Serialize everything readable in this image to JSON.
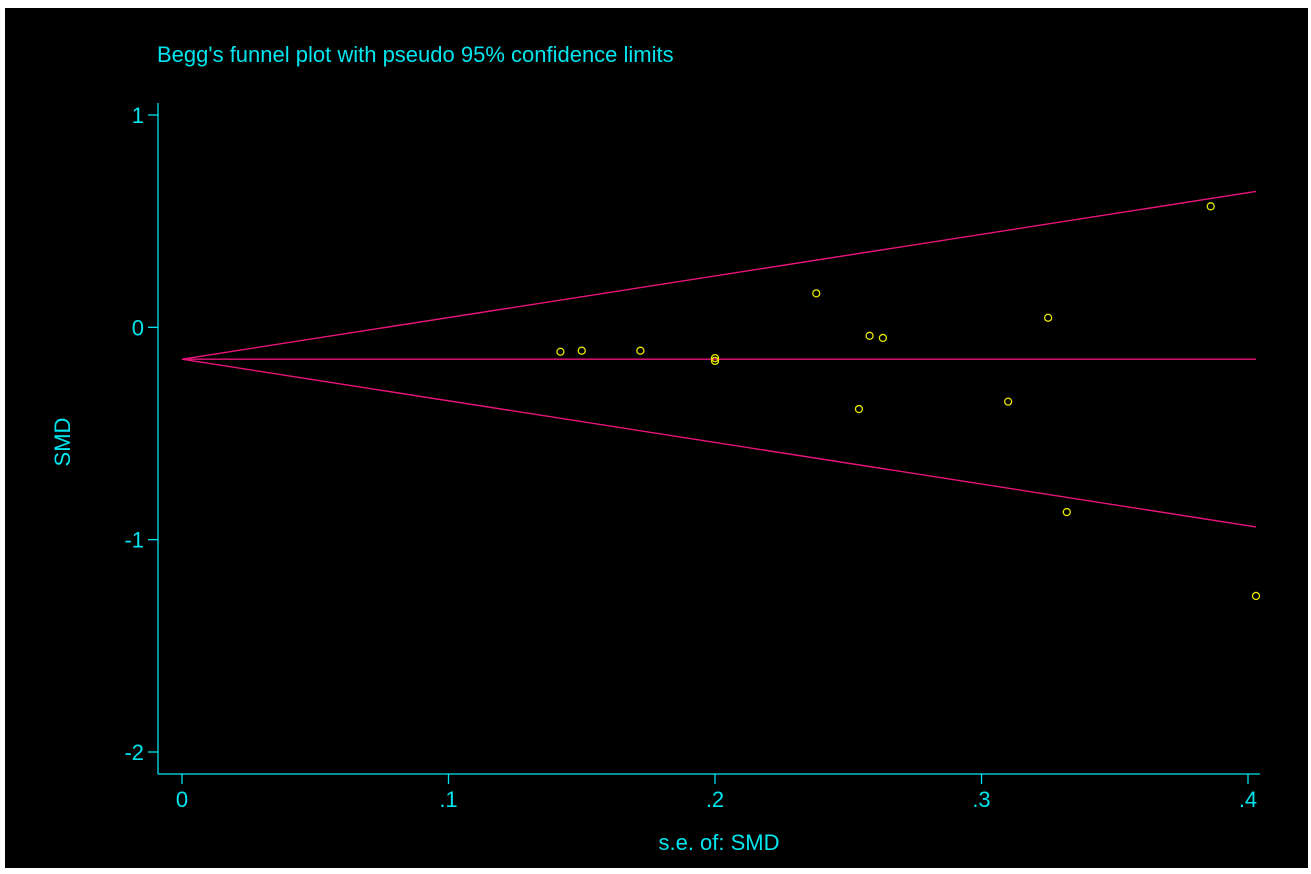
{
  "colors": {
    "background": "#000000",
    "text": "#00e5ee",
    "axis": "#00e5ee",
    "lines": "#e8157a",
    "points": "#e8e800"
  },
  "chart_data": {
    "type": "scatter",
    "title": "Begg's funnel plot with pseudo 95% confidence limits",
    "xlabel": "s.e. of: SMD",
    "ylabel": "SMD",
    "xlim": [
      0,
      0.4
    ],
    "ylim": [
      -2,
      1
    ],
    "x_ticks": [
      {
        "value": 0,
        "label": "0"
      },
      {
        "value": 0.1,
        "label": ".1"
      },
      {
        "value": 0.2,
        "label": ".2"
      },
      {
        "value": 0.3,
        "label": ".3"
      },
      {
        "value": 0.4,
        "label": ".4"
      }
    ],
    "y_ticks": [
      {
        "value": 1,
        "label": "1"
      },
      {
        "value": 0,
        "label": "0"
      },
      {
        "value": -1,
        "label": "-1"
      },
      {
        "value": -2,
        "label": "-2"
      }
    ],
    "pooled_estimate": -0.15,
    "funnel_x_max": 0.403,
    "points": [
      {
        "x": 0.142,
        "y": -0.115
      },
      {
        "x": 0.15,
        "y": -0.11
      },
      {
        "x": 0.172,
        "y": -0.11
      },
      {
        "x": 0.2,
        "y": -0.145
      },
      {
        "x": 0.2,
        "y": -0.158
      },
      {
        "x": 0.238,
        "y": 0.16
      },
      {
        "x": 0.254,
        "y": -0.385
      },
      {
        "x": 0.258,
        "y": -0.04
      },
      {
        "x": 0.263,
        "y": -0.05
      },
      {
        "x": 0.31,
        "y": -0.35
      },
      {
        "x": 0.325,
        "y": 0.045
      },
      {
        "x": 0.332,
        "y": -0.87
      },
      {
        "x": 0.386,
        "y": 0.57
      },
      {
        "x": 0.403,
        "y": -1.265
      }
    ]
  }
}
